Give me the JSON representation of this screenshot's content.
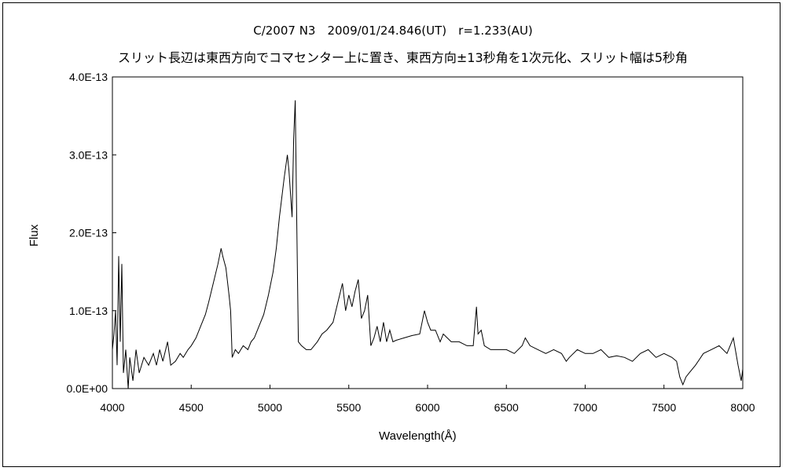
{
  "chart_data": {
    "type": "line",
    "title": "C/2007 N3　2009/01/24.846(UT)　r=1.233(AU)",
    "subtitle": "スリット長辺は東西方向でコマセンター上に置き、東西方向±13秒角を1次元化、スリット幅は5秒角",
    "xlabel": "Wavelength(Å)",
    "ylabel": "Flux",
    "xlim": [
      4000,
      8000
    ],
    "ylim": [
      0,
      4e-13
    ],
    "xticks": [
      "4000",
      "4500",
      "5000",
      "5500",
      "6000",
      "6500",
      "7000",
      "7500",
      "8000"
    ],
    "yticks": [
      "0.0E+00",
      "1.0E-13",
      "2.0E-13",
      "3.0E-13",
      "4.0E-13"
    ],
    "grid": false,
    "legend": "none",
    "y_unit_scale": 1e-13,
    "series": [
      {
        "name": "Flux",
        "color": "#000000",
        "x": [
          4000,
          4010,
          4020,
          4030,
          4040,
          4050,
          4060,
          4070,
          4085,
          4100,
          4110,
          4130,
          4150,
          4170,
          4200,
          4230,
          4260,
          4280,
          4300,
          4320,
          4350,
          4370,
          4400,
          4430,
          4450,
          4480,
          4500,
          4530,
          4560,
          4590,
          4610,
          4640,
          4670,
          4690,
          4700,
          4720,
          4740,
          4750,
          4760,
          4780,
          4800,
          4830,
          4860,
          4880,
          4900,
          4930,
          4960,
          4990,
          5020,
          5040,
          5060,
          5090,
          5110,
          5120,
          5140,
          5150,
          5160,
          5170,
          5180,
          5200,
          5230,
          5260,
          5300,
          5330,
          5360,
          5400,
          5430,
          5460,
          5480,
          5500,
          5520,
          5540,
          5560,
          5580,
          5600,
          5620,
          5640,
          5660,
          5680,
          5700,
          5720,
          5740,
          5760,
          5780,
          5800,
          5850,
          5900,
          5950,
          5980,
          6000,
          6020,
          6050,
          6080,
          6100,
          6150,
          6200,
          6250,
          6290,
          6310,
          6320,
          6340,
          6360,
          6400,
          6450,
          6500,
          6550,
          6600,
          6620,
          6650,
          6700,
          6750,
          6800,
          6850,
          6880,
          6900,
          6950,
          7000,
          7050,
          7100,
          7150,
          7200,
          7250,
          7300,
          7350,
          7400,
          7450,
          7500,
          7550,
          7580,
          7600,
          7620,
          7640,
          7660,
          7700,
          7750,
          7800,
          7850,
          7900,
          7940,
          7970,
          7990,
          8000
        ],
        "y": [
          0.5,
          0.7,
          1.0,
          0.3,
          1.7,
          0.6,
          1.6,
          0.2,
          0.5,
          0.0,
          0.4,
          0.1,
          0.5,
          0.2,
          0.4,
          0.3,
          0.45,
          0.3,
          0.5,
          0.35,
          0.6,
          0.3,
          0.35,
          0.45,
          0.4,
          0.5,
          0.55,
          0.65,
          0.8,
          0.95,
          1.1,
          1.35,
          1.6,
          1.8,
          1.7,
          1.55,
          1.2,
          1.0,
          0.4,
          0.5,
          0.45,
          0.55,
          0.5,
          0.6,
          0.65,
          0.8,
          0.95,
          1.2,
          1.5,
          1.8,
          2.2,
          2.7,
          3.0,
          2.8,
          2.2,
          3.2,
          3.7,
          2.1,
          0.6,
          0.55,
          0.5,
          0.5,
          0.6,
          0.7,
          0.75,
          0.85,
          1.1,
          1.35,
          1.0,
          1.2,
          1.05,
          1.25,
          1.4,
          0.9,
          1.0,
          1.2,
          0.55,
          0.65,
          0.8,
          0.6,
          0.85,
          0.6,
          0.75,
          0.6,
          0.62,
          0.65,
          0.68,
          0.7,
          1.0,
          0.85,
          0.75,
          0.75,
          0.6,
          0.7,
          0.6,
          0.6,
          0.55,
          0.55,
          1.05,
          0.7,
          0.75,
          0.55,
          0.5,
          0.5,
          0.5,
          0.45,
          0.55,
          0.65,
          0.55,
          0.5,
          0.45,
          0.5,
          0.45,
          0.35,
          0.4,
          0.5,
          0.45,
          0.45,
          0.5,
          0.4,
          0.42,
          0.4,
          0.35,
          0.45,
          0.5,
          0.4,
          0.45,
          0.4,
          0.35,
          0.15,
          0.05,
          0.15,
          0.2,
          0.3,
          0.45,
          0.5,
          0.55,
          0.45,
          0.65,
          0.3,
          0.1,
          0.25
        ]
      }
    ]
  }
}
